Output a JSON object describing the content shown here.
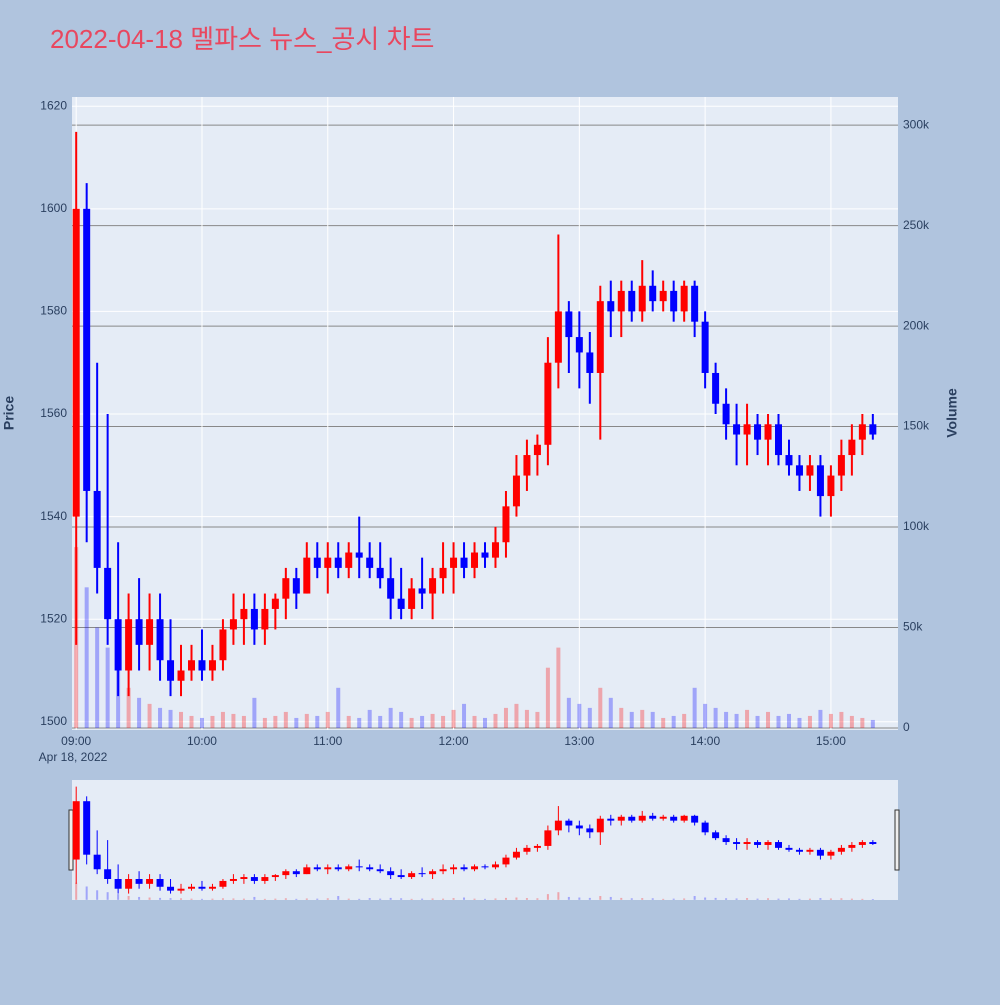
{
  "chart_data": {
    "type": "candlestick",
    "title": "2022-04-18 멜파스 뉴스_공시 차트",
    "ylabel": "Price",
    "y2label": "Volume",
    "date_label": "Apr 18, 2022",
    "increasing_color": "#ff0000",
    "decreasing_color": "#0000ff",
    "rangeslider": true,
    "x": [
      "09:00",
      "09:05",
      "09:10",
      "09:15",
      "09:20",
      "09:25",
      "09:30",
      "09:35",
      "09:40",
      "09:45",
      "09:50",
      "09:55",
      "10:00",
      "10:05",
      "10:10",
      "10:15",
      "10:20",
      "10:25",
      "10:30",
      "10:35",
      "10:40",
      "10:45",
      "10:50",
      "10:55",
      "11:00",
      "11:05",
      "11:10",
      "11:15",
      "11:20",
      "11:25",
      "11:30",
      "11:35",
      "11:40",
      "11:45",
      "11:50",
      "11:55",
      "12:00",
      "12:05",
      "12:10",
      "12:15",
      "12:20",
      "12:25",
      "12:30",
      "12:35",
      "12:40",
      "12:45",
      "12:50",
      "12:55",
      "13:00",
      "13:05",
      "13:10",
      "13:15",
      "13:20",
      "13:25",
      "13:30",
      "13:35",
      "13:40",
      "13:45",
      "13:50",
      "13:55",
      "14:00",
      "14:05",
      "14:10",
      "14:15",
      "14:20",
      "14:25",
      "14:30",
      "14:35",
      "14:40",
      "14:45",
      "14:50",
      "14:55",
      "15:00",
      "15:05",
      "15:10",
      "15:15",
      "15:20"
    ],
    "open": [
      1540,
      1600,
      1545,
      1530,
      1520,
      1510,
      1520,
      1515,
      1520,
      1512,
      1508,
      1510,
      1512,
      1510,
      1512,
      1518,
      1520,
      1522,
      1518,
      1522,
      1524,
      1528,
      1525,
      1532,
      1530,
      1532,
      1530,
      1533,
      1532,
      1530,
      1528,
      1524,
      1522,
      1526,
      1525,
      1528,
      1530,
      1532,
      1530,
      1533,
      1532,
      1535,
      1542,
      1548,
      1552,
      1554,
      1570,
      1580,
      1575,
      1572,
      1568,
      1582,
      1580,
      1584,
      1580,
      1585,
      1582,
      1584,
      1580,
      1585,
      1578,
      1568,
      1562,
      1558,
      1556,
      1558,
      1555,
      1558,
      1552,
      1550,
      1548,
      1550,
      1544,
      1548,
      1552,
      1555,
      1558
    ],
    "high": [
      1615,
      1605,
      1570,
      1560,
      1535,
      1525,
      1528,
      1525,
      1525,
      1520,
      1515,
      1515,
      1518,
      1515,
      1520,
      1525,
      1525,
      1525,
      1525,
      1525,
      1530,
      1530,
      1535,
      1535,
      1535,
      1535,
      1535,
      1540,
      1535,
      1535,
      1532,
      1530,
      1528,
      1532,
      1530,
      1535,
      1535,
      1535,
      1535,
      1535,
      1538,
      1545,
      1552,
      1555,
      1556,
      1575,
      1595,
      1582,
      1580,
      1576,
      1585,
      1586,
      1586,
      1586,
      1590,
      1588,
      1586,
      1586,
      1586,
      1586,
      1580,
      1570,
      1565,
      1562,
      1562,
      1560,
      1560,
      1560,
      1555,
      1552,
      1552,
      1552,
      1550,
      1555,
      1558,
      1560,
      1560
    ],
    "low": [
      1515,
      1535,
      1525,
      1515,
      1505,
      1505,
      1510,
      1510,
      1508,
      1505,
      1505,
      1508,
      1508,
      1508,
      1510,
      1515,
      1515,
      1515,
      1515,
      1518,
      1520,
      1522,
      1525,
      1528,
      1525,
      1528,
      1528,
      1528,
      1528,
      1526,
      1520,
      1520,
      1520,
      1522,
      1520,
      1525,
      1525,
      1528,
      1528,
      1530,
      1530,
      1532,
      1540,
      1545,
      1548,
      1550,
      1565,
      1568,
      1565,
      1562,
      1555,
      1575,
      1575,
      1578,
      1578,
      1580,
      1580,
      1578,
      1578,
      1575,
      1565,
      1560,
      1555,
      1550,
      1550,
      1552,
      1550,
      1550,
      1548,
      1545,
      1545,
      1540,
      1540,
      1545,
      1548,
      1552,
      1555
    ],
    "close": [
      1600,
      1545,
      1530,
      1520,
      1510,
      1520,
      1515,
      1520,
      1512,
      1508,
      1510,
      1512,
      1510,
      1512,
      1518,
      1520,
      1522,
      1518,
      1522,
      1524,
      1528,
      1525,
      1532,
      1530,
      1532,
      1530,
      1533,
      1532,
      1530,
      1528,
      1524,
      1522,
      1526,
      1525,
      1528,
      1530,
      1532,
      1530,
      1533,
      1532,
      1535,
      1542,
      1548,
      1552,
      1554,
      1570,
      1580,
      1575,
      1572,
      1568,
      1582,
      1580,
      1584,
      1580,
      1585,
      1582,
      1584,
      1580,
      1585,
      1578,
      1568,
      1562,
      1558,
      1556,
      1558,
      1555,
      1558,
      1552,
      1550,
      1548,
      1550,
      1544,
      1548,
      1552,
      1555,
      1558,
      1556
    ],
    "volume": [
      90000,
      70000,
      50000,
      40000,
      30000,
      20000,
      15000,
      12000,
      10000,
      9000,
      8000,
      6000,
      5000,
      6000,
      8000,
      7000,
      6000,
      15000,
      5000,
      6000,
      8000,
      5000,
      7000,
      6000,
      8000,
      20000,
      6000,
      5000,
      9000,
      6000,
      10000,
      8000,
      5000,
      6000,
      7000,
      6000,
      9000,
      12000,
      6000,
      5000,
      7000,
      10000,
      12000,
      9000,
      8000,
      30000,
      40000,
      15000,
      12000,
      10000,
      20000,
      15000,
      10000,
      8000,
      9000,
      8000,
      5000,
      6000,
      7000,
      20000,
      12000,
      10000,
      8000,
      7000,
      9000,
      6000,
      8000,
      6000,
      7000,
      5000,
      6000,
      9000,
      7000,
      8000,
      6000,
      5000,
      4000
    ],
    "xlim": [
      "08:58",
      "15:32"
    ],
    "xticks": [
      "09:00",
      "10:00",
      "11:00",
      "12:00",
      "13:00",
      "14:00",
      "15:00"
    ],
    "ylim": [
      1498.4,
      1621.8
    ],
    "yticks": [
      1500,
      1520,
      1540,
      1560,
      1580,
      1600,
      1620
    ],
    "y2lim": [
      -1000,
      314000
    ],
    "y2ticks": [
      0,
      {
        "value": 50000,
        "label": "50k"
      },
      {
        "value": 100000,
        "label": "100k"
      },
      {
        "value": 150000,
        "label": "150k"
      },
      {
        "value": 200000,
        "label": "200k"
      },
      {
        "value": 250000,
        "label": "250k"
      },
      {
        "value": 300000,
        "label": "300k"
      }
    ]
  }
}
